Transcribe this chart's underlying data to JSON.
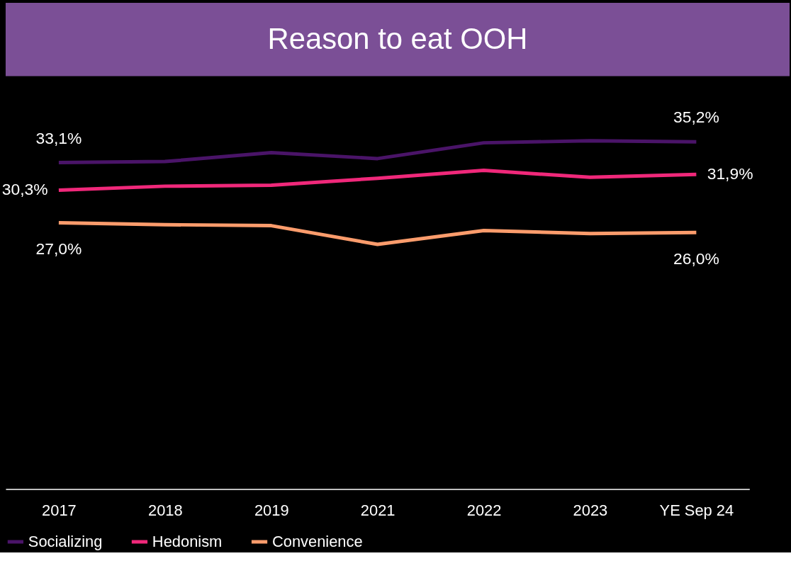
{
  "chart_data": {
    "type": "line",
    "title": "Reason to eat OOH",
    "categories": [
      "2017",
      "2018",
      "2019",
      "2021",
      "2022",
      "2023",
      "YE Sep 24"
    ],
    "tick_labels": "x",
    "grid": false,
    "legend": "bottom",
    "marker": "none",
    "line_style": "solid",
    "series": [
      {
        "name": "Socializing",
        "color": "#4a1468",
        "values": [
          33.1,
          33.2,
          34.1,
          33.5,
          35.1,
          35.3,
          35.2
        ],
        "value_labels": [
          "33,1%",
          null,
          null,
          null,
          null,
          null,
          "35,2%"
        ]
      },
      {
        "name": "Hedonism",
        "color": "#f0287a",
        "values": [
          30.3,
          30.7,
          30.8,
          31.5,
          32.3,
          31.6,
          31.9
        ],
        "value_labels": [
          "30,3%",
          null,
          null,
          null,
          null,
          null,
          "31,9%"
        ]
      },
      {
        "name": "Convenience",
        "color": "#fb9c6c",
        "values": [
          27.0,
          26.8,
          26.7,
          24.8,
          26.2,
          25.9,
          26.0
        ],
        "value_labels": [
          "27,0%",
          null,
          null,
          null,
          null,
          null,
          "26,0%"
        ]
      }
    ]
  }
}
